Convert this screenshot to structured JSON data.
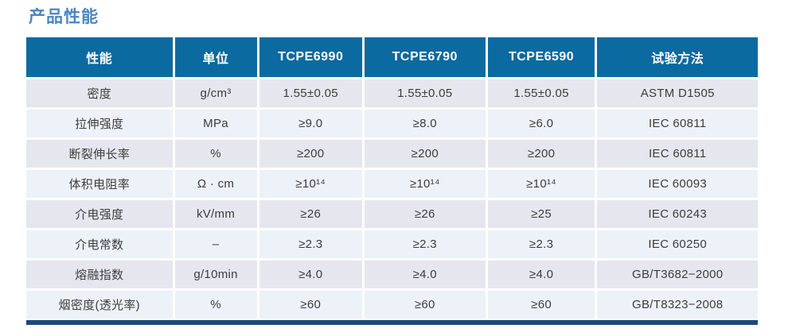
{
  "page_title": "产品性能",
  "colors": {
    "title": "#4a86c2",
    "header_bg": "#0b6a9f",
    "header_text": "#ffffff",
    "row_odd_bg": "#e6e6ee",
    "row_even_bg": "#edf1f8",
    "body_text": "#3d3d3d",
    "bottom_border": "#1d4a7a"
  },
  "table": {
    "columns": [
      "性能",
      "单位",
      "TCPE6990",
      "TCPE6790",
      "TCPE6590",
      "试验方法"
    ],
    "rows": [
      [
        "密度",
        "g/cm³",
        "1.55±0.05",
        "1.55±0.05",
        "1.55±0.05",
        "ASTM D1505"
      ],
      [
        "拉伸强度",
        "MPa",
        "≥9.0",
        "≥8.0",
        "≥6.0",
        "IEC 60811"
      ],
      [
        "断裂伸长率",
        "%",
        "≥200",
        "≥200",
        "≥200",
        "IEC 60811"
      ],
      [
        "体积电阻率",
        "Ω · cm",
        "≥10¹⁴",
        "≥10¹⁴",
        "≥10¹⁴",
        "IEC 60093"
      ],
      [
        "介电强度",
        "kV/mm",
        "≥26",
        "≥26",
        "≥25",
        "IEC 60243"
      ],
      [
        "介电常数",
        "–",
        "≥2.3",
        "≥2.3",
        "≥2.3",
        "IEC 60250"
      ],
      [
        "熔融指数",
        "g/10min",
        "≥4.0",
        "≥4.0",
        "≥4.0",
        "GB/T3682−2000"
      ],
      [
        "烟密度(透光率)",
        "%",
        "≥60",
        "≥60",
        "≥60",
        "GB/T8323−2008"
      ]
    ]
  }
}
